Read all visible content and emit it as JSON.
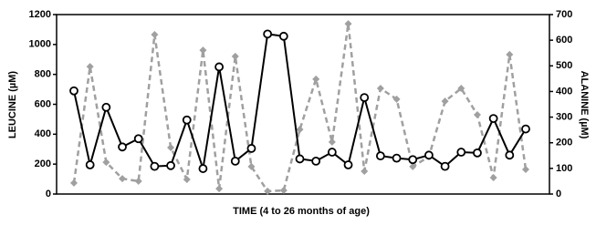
{
  "chart_data": {
    "type": "line",
    "xlabel": "TIME (4 to 26 months of age)",
    "ylabel": "LEUCINE (µM)",
    "y2label": "ALANINE (µM)",
    "categories": [
      null,
      null,
      null,
      null,
      null,
      null,
      null,
      null,
      null,
      null,
      null,
      null,
      null,
      null,
      null,
      null,
      null,
      null,
      null,
      null,
      null,
      null,
      null,
      null,
      null,
      null,
      null,
      null,
      null
    ],
    "series": [
      {
        "name": "Leucine",
        "color": "#000000",
        "dash": false,
        "marker": "circle",
        "values": [
          690,
          195,
          580,
          315,
          370,
          185,
          190,
          495,
          170,
          850,
          220,
          305,
          1070,
          1055,
          235,
          220,
          280,
          195,
          645,
          255,
          240,
          230,
          260,
          185,
          280,
          275,
          505,
          260,
          435
        ]
      },
      {
        "name": "Alanine",
        "color": "#a0a0a0",
        "dash": true,
        "marker": "diamond",
        "axis": "y2",
        "values": [
          43,
          497,
          124,
          60,
          50,
          622,
          181,
          57,
          561,
          21,
          537,
          107,
          11,
          14,
          252,
          448,
          203,
          664,
          89,
          412,
          370,
          107,
          146,
          362,
          412,
          309,
          64,
          544,
          96
        ]
      }
    ],
    "ylim": [
      0,
      1200
    ],
    "yticks": [
      0,
      200,
      400,
      600,
      800,
      1000,
      1200
    ],
    "y2lim": [
      0,
      700
    ],
    "y2ticks": [
      0,
      100,
      200,
      300,
      400,
      500,
      600,
      700
    ]
  }
}
